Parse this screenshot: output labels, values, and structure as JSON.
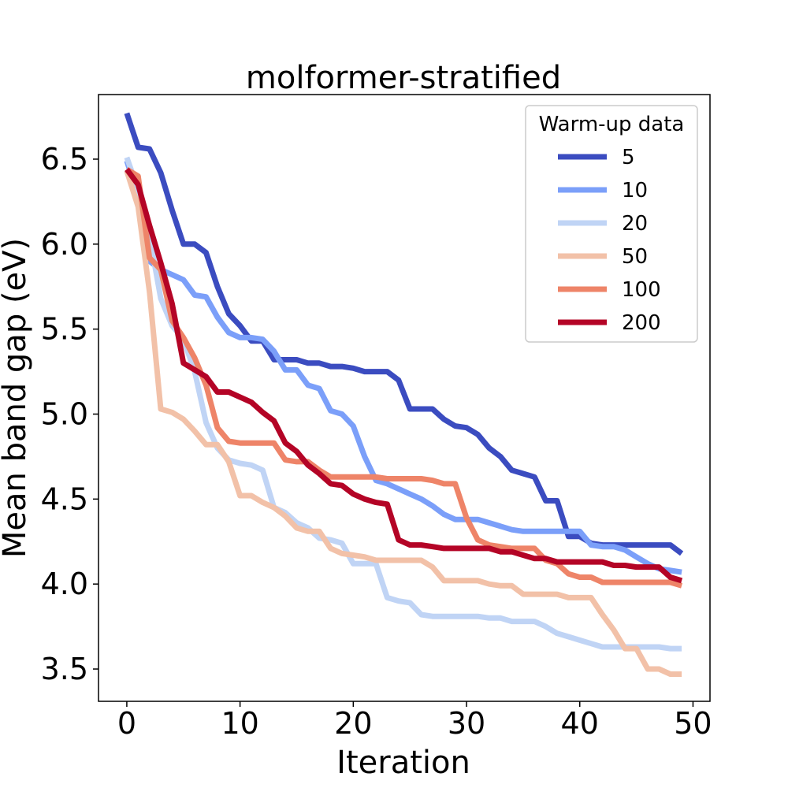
{
  "chart_data": {
    "type": "line",
    "title": "molformer-stratified",
    "xlabel": "Iteration",
    "ylabel": "Mean band gap (eV)",
    "xlim": [
      -2.5,
      51.5
    ],
    "ylim": [
      3.31,
      6.88
    ],
    "xticks": [
      0,
      10,
      20,
      30,
      40,
      50
    ],
    "yticks": [
      3.5,
      4.0,
      4.5,
      5.0,
      5.5,
      6.0,
      6.5
    ],
    "xtick_labels": [
      "0",
      "10",
      "20",
      "30",
      "40",
      "50"
    ],
    "ytick_labels": [
      "3.5",
      "4.0",
      "4.5",
      "5.0",
      "5.5",
      "6.0",
      "6.5"
    ],
    "grid": false,
    "legend": {
      "title": "Warm-up data",
      "placement": "top-right"
    },
    "series": [
      {
        "name": "5",
        "color": "#3b4cc0",
        "values": [
          6.77,
          6.57,
          6.56,
          6.42,
          6.2,
          6.0,
          6.0,
          5.95,
          5.75,
          5.59,
          5.52,
          5.43,
          5.43,
          5.32,
          5.32,
          5.32,
          5.3,
          5.3,
          5.28,
          5.28,
          5.27,
          5.25,
          5.25,
          5.25,
          5.2,
          5.03,
          5.03,
          5.03,
          4.97,
          4.93,
          4.92,
          4.88,
          4.8,
          4.75,
          4.67,
          4.65,
          4.63,
          4.49,
          4.49,
          4.28,
          4.28,
          4.24,
          4.23,
          4.23,
          4.23,
          4.23,
          4.23,
          4.23,
          4.23,
          4.18
        ]
      },
      {
        "name": "10",
        "color": "#7b9ff9",
        "values": [
          6.49,
          6.28,
          5.9,
          5.85,
          5.82,
          5.79,
          5.7,
          5.69,
          5.57,
          5.48,
          5.45,
          5.45,
          5.44,
          5.37,
          5.26,
          5.26,
          5.17,
          5.15,
          5.02,
          5.0,
          4.93,
          4.75,
          4.61,
          4.59,
          4.56,
          4.53,
          4.5,
          4.46,
          4.41,
          4.38,
          4.38,
          4.38,
          4.36,
          4.34,
          4.32,
          4.31,
          4.31,
          4.31,
          4.31,
          4.31,
          4.31,
          4.23,
          4.22,
          4.22,
          4.2,
          4.16,
          4.12,
          4.09,
          4.08,
          4.07
        ]
      },
      {
        "name": "20",
        "color": "#c0d4f5",
        "values": [
          6.51,
          6.32,
          6.05,
          5.68,
          5.52,
          5.44,
          5.25,
          4.95,
          4.8,
          4.73,
          4.71,
          4.7,
          4.67,
          4.45,
          4.42,
          4.36,
          4.33,
          4.27,
          4.26,
          4.24,
          4.12,
          4.12,
          4.12,
          3.92,
          3.9,
          3.89,
          3.82,
          3.81,
          3.81,
          3.81,
          3.81,
          3.81,
          3.8,
          3.8,
          3.78,
          3.78,
          3.78,
          3.75,
          3.71,
          3.69,
          3.67,
          3.65,
          3.63,
          3.63,
          3.63,
          3.63,
          3.63,
          3.63,
          3.62,
          3.62
        ]
      },
      {
        "name": "50",
        "color": "#f2c1a8",
        "values": [
          6.43,
          6.22,
          5.72,
          5.03,
          5.01,
          4.97,
          4.9,
          4.82,
          4.82,
          4.72,
          4.52,
          4.52,
          4.48,
          4.45,
          4.4,
          4.33,
          4.31,
          4.31,
          4.21,
          4.18,
          4.17,
          4.16,
          4.14,
          4.14,
          4.14,
          4.14,
          4.14,
          4.1,
          4.02,
          4.02,
          4.02,
          4.02,
          4.0,
          3.99,
          3.99,
          3.94,
          3.94,
          3.94,
          3.94,
          3.92,
          3.92,
          3.92,
          3.82,
          3.73,
          3.62,
          3.62,
          3.5,
          3.5,
          3.47,
          3.47
        ]
      },
      {
        "name": "100",
        "color": "#ee8468",
        "values": [
          6.44,
          6.4,
          5.92,
          5.85,
          5.55,
          5.45,
          5.33,
          5.17,
          4.92,
          4.84,
          4.83,
          4.83,
          4.83,
          4.83,
          4.73,
          4.72,
          4.72,
          4.67,
          4.63,
          4.63,
          4.63,
          4.63,
          4.63,
          4.62,
          4.62,
          4.62,
          4.62,
          4.61,
          4.59,
          4.59,
          4.39,
          4.26,
          4.23,
          4.22,
          4.21,
          4.21,
          4.21,
          4.14,
          4.12,
          4.06,
          4.04,
          4.04,
          4.01,
          4.01,
          4.01,
          4.01,
          4.01,
          4.01,
          4.01,
          3.99
        ]
      },
      {
        "name": "200",
        "color": "#b40426",
        "values": [
          6.44,
          6.35,
          6.11,
          5.89,
          5.65,
          5.3,
          5.26,
          5.22,
          5.13,
          5.13,
          5.1,
          5.07,
          5.01,
          4.96,
          4.83,
          4.78,
          4.7,
          4.65,
          4.59,
          4.58,
          4.53,
          4.5,
          4.48,
          4.47,
          4.26,
          4.23,
          4.23,
          4.22,
          4.21,
          4.21,
          4.21,
          4.21,
          4.21,
          4.19,
          4.19,
          4.17,
          4.15,
          4.15,
          4.13,
          4.13,
          4.13,
          4.13,
          4.13,
          4.11,
          4.11,
          4.1,
          4.1,
          4.1,
          4.04,
          4.02
        ]
      }
    ]
  }
}
